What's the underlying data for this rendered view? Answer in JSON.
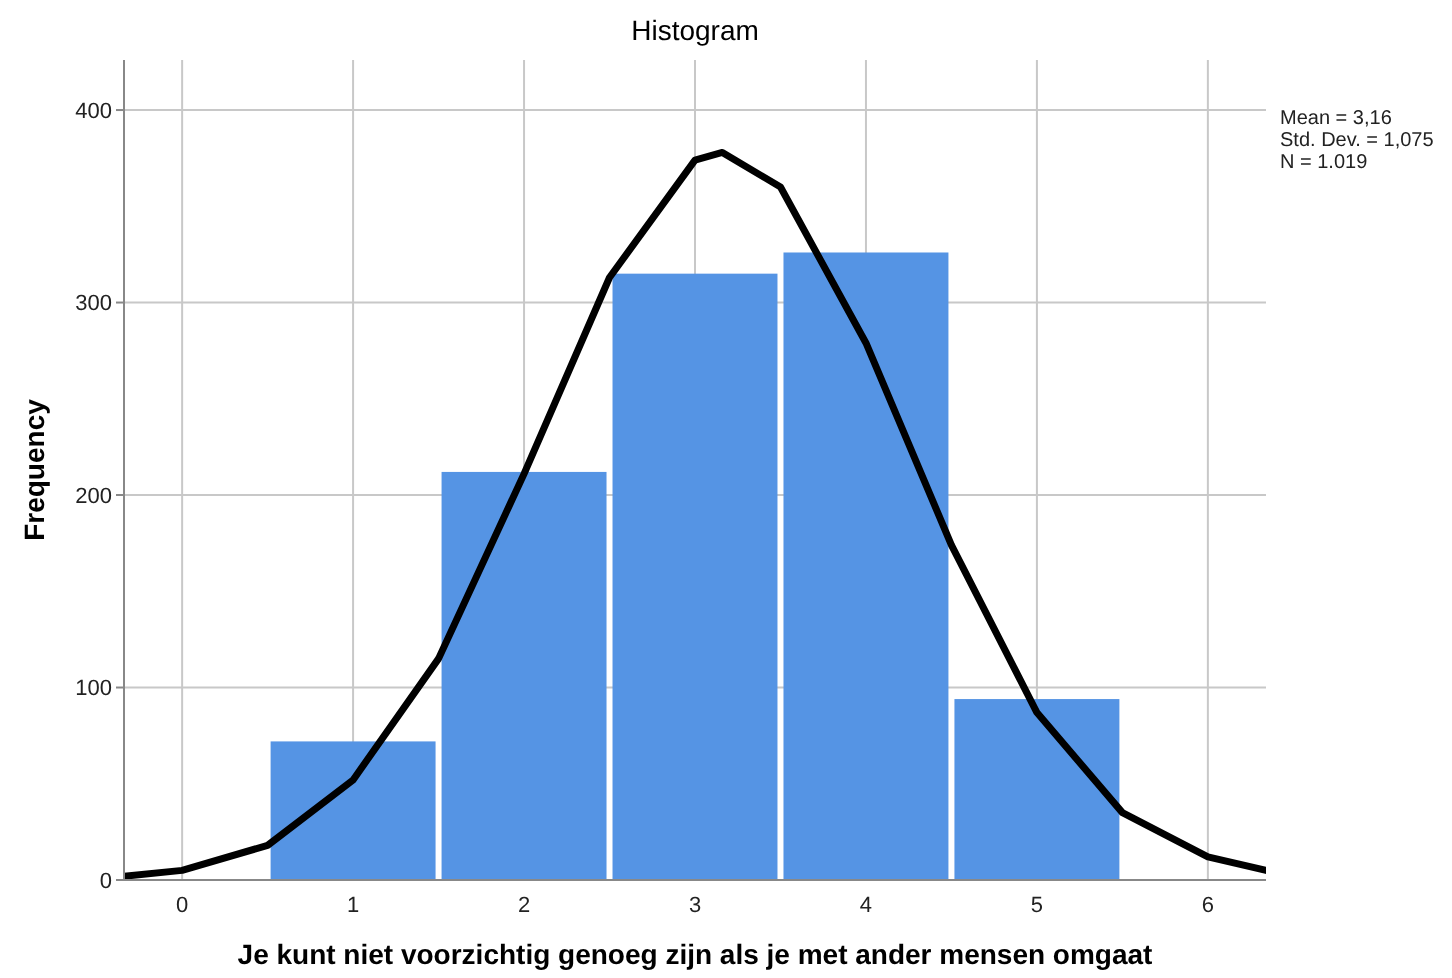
{
  "chart_data": {
    "type": "histogram",
    "title": "Histogram",
    "xlabel": "Je kunt niet voorzichtig genoeg zijn als je met ander mensen omgaat",
    "ylabel": "Frequency",
    "bins": [
      0.5,
      1.5,
      2.5,
      3.5,
      4.5,
      5.5
    ],
    "values": [
      72,
      212,
      315,
      326,
      94
    ],
    "color": "#5594e4",
    "series": [
      {
        "type": "line",
        "color": "#000000",
        "x": [
          -0.34,
          0,
          0.5,
          1,
          1.5,
          2,
          2.5,
          3,
          3.16,
          3.5,
          4,
          4.5,
          5,
          5.5,
          6,
          6.34
        ],
        "values": [
          2,
          5,
          18,
          52,
          115,
          211,
          313,
          374,
          378,
          360,
          279,
          174,
          87,
          35,
          12,
          5
        ]
      }
    ],
    "xlim": [
      -0.34,
      6.34
    ],
    "xticks": [
      0,
      1,
      2,
      3,
      4,
      5,
      6
    ],
    "ylim": [
      0,
      426
    ],
    "yticks": [
      0,
      100,
      200,
      300,
      400
    ],
    "grid": true,
    "annotations": [
      "Mean = 3,16\nStd. Dev. = 1,075\nN = 1.019"
    ]
  }
}
